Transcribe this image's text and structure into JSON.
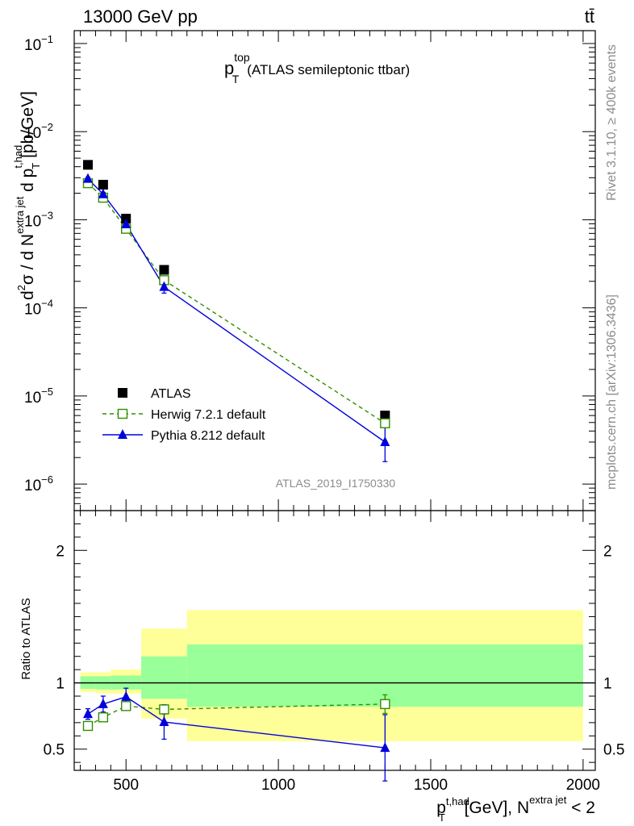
{
  "header": {
    "energy_label": "13000 GeV pp",
    "process_label": "tt̄"
  },
  "side_labels": {
    "rivet": "Rivet 3.1.10, ≥ 400k events",
    "mcplots": "mcplots.cern.ch [arXiv:1306.3436]"
  },
  "colors": {
    "data": "#000000",
    "herwig": "#2f8f00",
    "pythia": "#0000dd",
    "band_stat": "#99ff99",
    "band_total": "#ffff99"
  },
  "chart_data": {
    "type": "scatter",
    "title_main": "p",
    "title_sup": "top",
    "title_sub": "T",
    "title_rest": "(ATLAS semileptonic ttbar)",
    "analysis_id": "ATLAS_2019_I1750330",
    "y_axis": {
      "label_parts": [
        "d",
        "2",
        "σ / d N",
        "extra jet",
        " d p",
        "t,had",
        "T",
        " [pb/GeV]"
      ],
      "scale": "log",
      "ylim": [
        5e-07,
        0.14
      ],
      "ticks": [
        {
          "value": 1e-06,
          "base": "10",
          "exp": "−6"
        },
        {
          "value": 1e-05,
          "base": "10",
          "exp": "−5"
        },
        {
          "value": 0.0001,
          "base": "10",
          "exp": "−4"
        },
        {
          "value": 0.001,
          "base": "10",
          "exp": "−3"
        },
        {
          "value": 0.01,
          "base": "10",
          "exp": "−2"
        },
        {
          "value": 0.1,
          "base": "10",
          "exp": "−1"
        }
      ]
    },
    "x_axis": {
      "xlim": [
        330,
        2040
      ],
      "ticks": [
        {
          "value": 500,
          "label": "500"
        },
        {
          "value": 1000,
          "label": "1000"
        },
        {
          "value": 1500,
          "label": "1500"
        },
        {
          "value": 2000,
          "label": "2000"
        }
      ],
      "label_parts": [
        "p",
        "t,had",
        "T",
        " [GeV], N",
        "extra jet",
        " < 2"
      ]
    },
    "legend": {
      "position": "bottom-left",
      "entries": [
        {
          "key": "data",
          "label": "ATLAS"
        },
        {
          "key": "herwig",
          "label": "Herwig 7.2.1 default"
        },
        {
          "key": "pythia",
          "label": "Pythia 8.212 default"
        }
      ]
    },
    "series": [
      {
        "name": "ATLAS",
        "key": "data",
        "marker": "filled-square",
        "x": [
          375,
          425,
          500,
          625,
          1350
        ],
        "y": [
          0.0042,
          0.0025,
          0.00103,
          0.00027,
          6e-06
        ]
      },
      {
        "name": "Herwig 7.2.1 default",
        "key": "herwig",
        "marker": "open-square",
        "line": "dashed",
        "x": [
          375,
          425,
          500,
          625,
          1350
        ],
        "y": [
          0.0026,
          0.00178,
          0.00079,
          0.000206,
          4.9e-06
        ],
        "yerr_lo": [
          0,
          0,
          0,
          1.2e-05,
          3e-07
        ],
        "yerr_hi": [
          0,
          0,
          0,
          1.2e-05,
          3e-07
        ],
        "ratio": [
          0.675,
          0.74,
          0.825,
          0.8,
          0.84
        ],
        "ratio_err": [
          0.01,
          0.01,
          0.015,
          0.035,
          0.07
        ]
      },
      {
        "name": "Pythia 8.212 default",
        "key": "pythia",
        "marker": "filled-triangle",
        "line": "solid",
        "x": [
          375,
          425,
          500,
          625,
          1350
        ],
        "y": [
          0.00292,
          0.00195,
          0.00089,
          0.000173,
          3e-06
        ],
        "yerr_lo": [
          0.00012,
          9e-05,
          5e-05,
          2.6e-05,
          1.2e-06
        ],
        "yerr_hi": [
          0.00012,
          9e-05,
          5e-05,
          2.6e-05,
          1.5e-06
        ],
        "ratio": [
          0.765,
          0.84,
          0.895,
          0.705,
          0.51
        ],
        "ratio_err": [
          0.04,
          0.06,
          0.065,
          0.13,
          0.25
        ]
      }
    ],
    "ratio_panel": {
      "ylabel": "Ratio to ATLAS",
      "ylim": [
        0.34,
        2.3
      ],
      "ticks": [
        {
          "value": 0.5,
          "label": "0.5"
        },
        {
          "value": 1,
          "label": "1"
        },
        {
          "value": 2,
          "label": "2"
        }
      ],
      "bins": [
        {
          "lo": 350,
          "hi": 400,
          "stat": [
            0.955,
            1.05
          ],
          "total": [
            0.93,
            1.08
          ]
        },
        {
          "lo": 400,
          "hi": 450,
          "stat": [
            0.95,
            1.05
          ],
          "total": [
            0.92,
            1.08
          ]
        },
        {
          "lo": 450,
          "hi": 550,
          "stat": [
            0.95,
            1.055
          ],
          "total": [
            0.92,
            1.1
          ]
        },
        {
          "lo": 550,
          "hi": 700,
          "stat": [
            0.88,
            1.2
          ],
          "total": [
            0.73,
            1.41
          ]
        },
        {
          "lo": 700,
          "hi": 2000,
          "stat": [
            0.82,
            1.29
          ],
          "total": [
            0.56,
            1.55
          ]
        }
      ]
    }
  }
}
